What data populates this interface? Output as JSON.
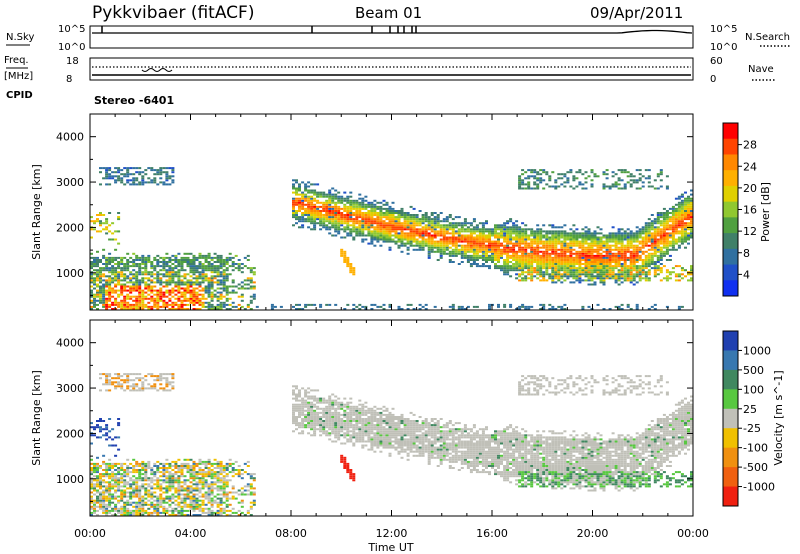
{
  "header": {
    "station": "Pykkvibaer (fitACF)",
    "beam": "Beam 01",
    "date": "09/Apr/2011"
  },
  "sky_panel": {
    "left_label": "N.Sky",
    "right_label": "N.Search",
    "y_ticks_left": [
      "10^5",
      "10^0"
    ],
    "y_ticks_right": [
      "10^5",
      "10^0"
    ]
  },
  "freq_panel": {
    "label_line1": "Freq.",
    "label_line2": "[MHz]",
    "right_label": "Nave",
    "y_ticks_left": [
      "18",
      "8"
    ],
    "y_ticks_right": [
      "60",
      "0"
    ]
  },
  "cpid": {
    "label": "CPID",
    "value": "Stereo -6401"
  },
  "axes": {
    "ylabel": "Slant Range [km]",
    "yticks": [
      "4000",
      "3000",
      "2000",
      "1000"
    ],
    "xticks": [
      "00:00",
      "04:00",
      "08:00",
      "12:00",
      "16:00",
      "20:00",
      "00:00"
    ],
    "xlabel": "Time UT"
  },
  "power_colorbar": {
    "label": "Power [dB]",
    "ticks": [
      "28",
      "24",
      "20",
      "16",
      "12",
      "8",
      "4"
    ],
    "colors": [
      "#ff0000",
      "#ff4400",
      "#ff8800",
      "#ffb000",
      "#e0d000",
      "#90c830",
      "#50a040",
      "#408068",
      "#3070a0",
      "#2050c8",
      "#1030f0"
    ]
  },
  "velocity_colorbar": {
    "label": "Velocity [m s^-1]",
    "ticks": [
      "1000",
      "500",
      "100",
      "25",
      "-25",
      "-100",
      "-500",
      "-1000"
    ],
    "colors": [
      "#2040b0",
      "#3878b0",
      "#408860",
      "#58c840",
      "#c0c0b8",
      "#f0c000",
      "#f09010",
      "#f06010",
      "#f02010"
    ]
  },
  "chart_data": [
    {
      "type": "heatmap",
      "title": "Power",
      "xlabel": "Time UT",
      "ylabel": "Slant Range [km]",
      "xlim": [
        0,
        24
      ],
      "ylim": [
        180,
        4500
      ],
      "colorbar_label": "Power [dB]",
      "colorbar_range": [
        0,
        30
      ],
      "features": [
        {
          "desc": "near-range echo band",
          "t_start": 0.2,
          "t_end": 6.6,
          "range_low": 200,
          "range_high": 1400,
          "power_db": 14
        },
        {
          "desc": "strong near-range core",
          "t_start": 0.5,
          "t_end": 4.5,
          "range_low": 250,
          "range_high": 700,
          "power_db": 28
        },
        {
          "desc": "far-range patch",
          "t_start": 0.3,
          "t_end": 3.3,
          "range_low": 2900,
          "range_high": 3300,
          "power_db": 8
        },
        {
          "desc": "main arc",
          "t_start": 8.0,
          "t_end": 24.0,
          "range_low": 1200,
          "range_high": 2700,
          "power_db": 18
        },
        {
          "desc": "arc core",
          "t_start": 12.0,
          "t_end": 23.5,
          "range_low": 1300,
          "range_high": 2100,
          "power_db": 26
        }
      ]
    },
    {
      "type": "heatmap",
      "title": "Velocity",
      "xlabel": "Time UT",
      "ylabel": "Slant Range [km]",
      "xlim": [
        0,
        24
      ],
      "ylim": [
        180,
        4500
      ],
      "colorbar_label": "Velocity [m s^-1]",
      "colorbar_range": [
        -1000,
        1000
      ],
      "features": [
        {
          "desc": "ground-scatter arc",
          "t_start": 8.0,
          "t_end": 24.0,
          "range_low": 1200,
          "range_high": 2700,
          "velocity": 0
        },
        {
          "desc": "near-range mixed flows",
          "t_start": 0.2,
          "t_end": 6.8,
          "range_low": 200,
          "range_high": 2200,
          "velocity": -100
        },
        {
          "desc": "streak",
          "t_start": 10.0,
          "t_end": 10.4,
          "range_low": 900,
          "range_high": 1500,
          "velocity": -1000
        }
      ]
    }
  ]
}
